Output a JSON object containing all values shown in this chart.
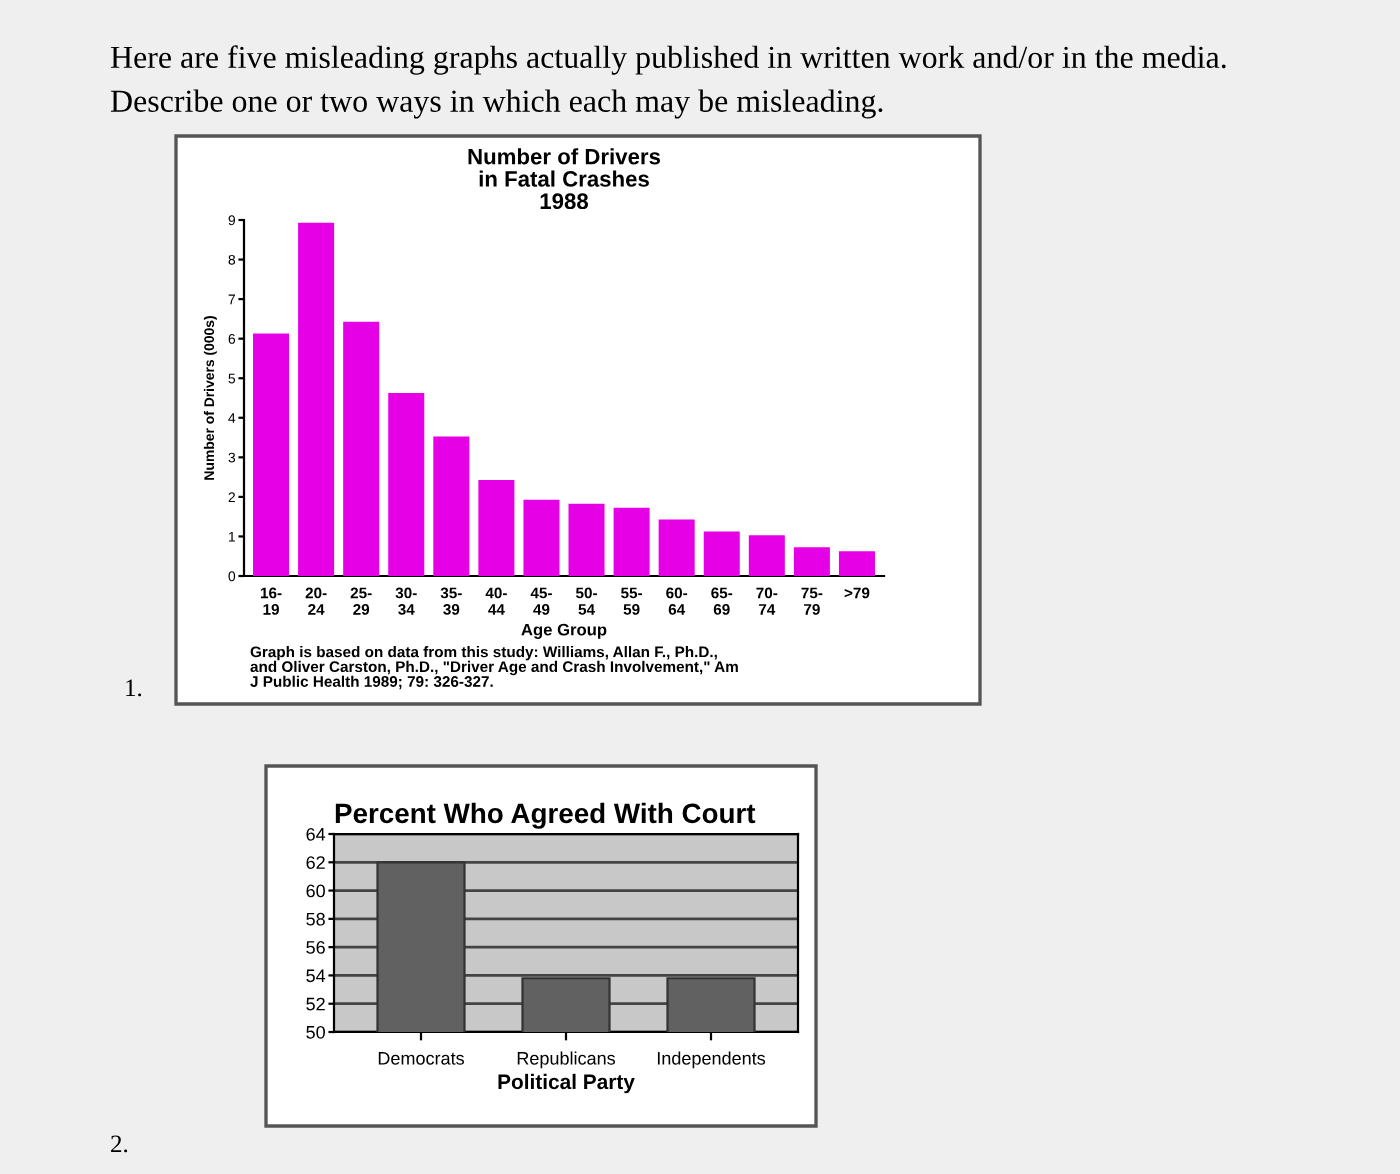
{
  "chart_data": [
    {
      "type": "bar",
      "title": "Number of Drivers\nin Fatal Crashes\n1988",
      "xlabel": "Age Group",
      "ylabel": "Number of Drivers (000s)",
      "categories": [
        "16-\n19",
        "20-\n24",
        "25-\n29",
        "30-\n34",
        "35-\n39",
        "40-\n44",
        "45-\n49",
        "50-\n54",
        "55-\n59",
        "60-\n64",
        "65-\n69",
        "70-\n74",
        "75-\n79",
        ">79"
      ],
      "values": [
        6.1,
        8.9,
        6.4,
        4.6,
        3.5,
        2.4,
        1.9,
        1.8,
        1.7,
        1.4,
        1.1,
        1.0,
        0.7,
        0.6
      ],
      "color": "#e600e6",
      "ylim": [
        0,
        9
      ],
      "yticks": [
        0,
        1,
        2,
        3,
        4,
        5,
        6,
        7,
        8,
        9
      ],
      "grid": false,
      "annotations": [
        "Here are five misleading graphs actually published in written work and/or in the media.",
        "Describe one or two ways in which each may be misleading.",
        "Graph is based on data from this study: Williams, Allan F., Ph.D.,\nand Oliver Carston, Ph.D., \"Driver Age and Crash Involvement,\" Am\nJ Public Health 1989; 79: 326-327.",
        "1."
      ]
    },
    {
      "type": "bar",
      "title": "Percent Who Agreed With Court",
      "xlabel": "Political Party",
      "categories": [
        "Democrats",
        "Republicans",
        "Independents"
      ],
      "values": [
        62,
        53.8,
        53.8
      ],
      "color": "#616161",
      "ylim": [
        50,
        64
      ],
      "yticks": [
        50,
        52,
        54,
        56,
        58,
        60,
        62,
        64
      ],
      "grid": "y",
      "annotations": [
        "2."
      ]
    }
  ]
}
